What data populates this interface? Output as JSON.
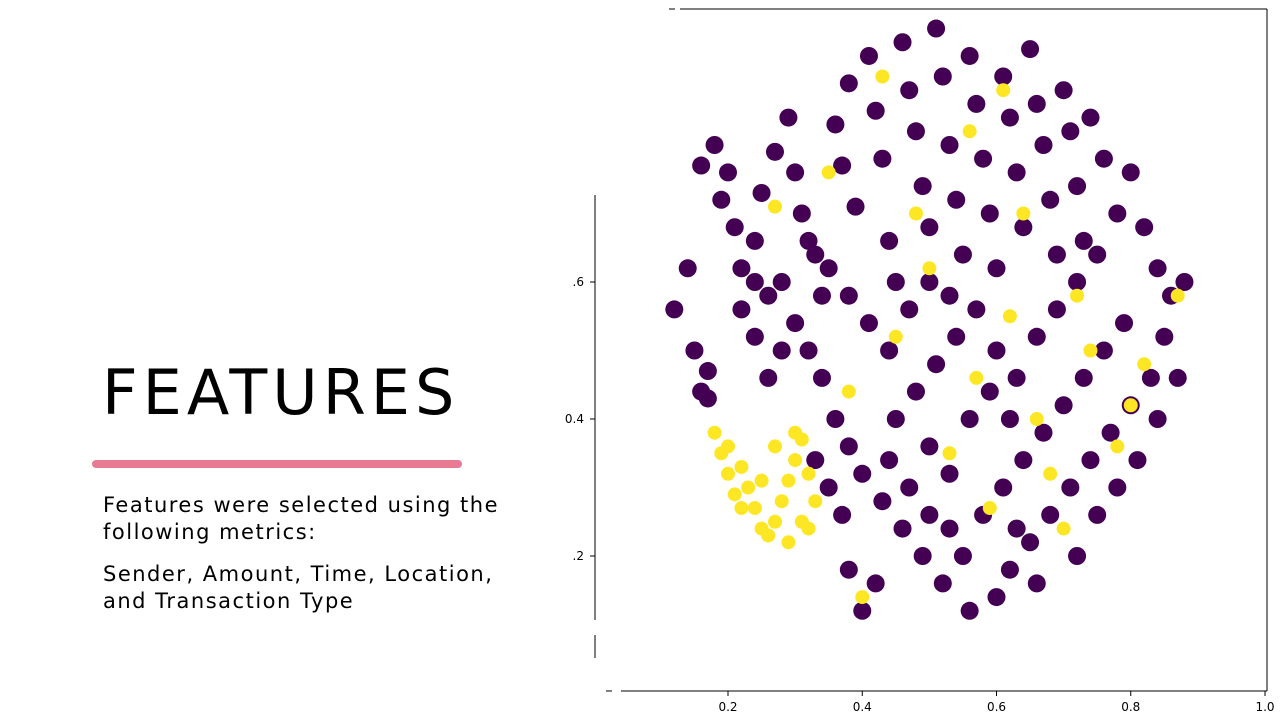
{
  "slide": {
    "title": "FEATURES",
    "paragraphs": [
      "Features were selected using the following metrics:",
      "Sender, Amount, Time, Location, and Transaction Type"
    ],
    "underline_color": "#e87a93"
  },
  "chart_data": {
    "type": "scatter",
    "title": "",
    "xlabel": "",
    "ylabel": "",
    "xlim": [
      0.05,
      1.0
    ],
    "ylim": [
      0.05,
      1.05
    ],
    "x_ticks": [
      "0.2",
      "0.4",
      "0.6",
      "0.8",
      "1.0"
    ],
    "y_ticks": [
      ".6",
      "0.4",
      ".2"
    ],
    "grid": false,
    "legend": "none",
    "series": [
      {
        "color": "#440154",
        "points": [
          [
            0.14,
            0.62
          ],
          [
            0.12,
            0.56
          ],
          [
            0.17,
            0.47
          ],
          [
            0.19,
            0.72
          ],
          [
            0.21,
            0.68
          ],
          [
            0.22,
            0.62
          ],
          [
            0.24,
            0.66
          ],
          [
            0.25,
            0.73
          ],
          [
            0.27,
            0.79
          ],
          [
            0.29,
            0.84
          ],
          [
            0.3,
            0.76
          ],
          [
            0.31,
            0.7
          ],
          [
            0.33,
            0.64
          ],
          [
            0.34,
            0.58
          ],
          [
            0.36,
            0.83
          ],
          [
            0.37,
            0.77
          ],
          [
            0.38,
            0.89
          ],
          [
            0.39,
            0.71
          ],
          [
            0.41,
            0.93
          ],
          [
            0.42,
            0.85
          ],
          [
            0.43,
            0.78
          ],
          [
            0.44,
            0.66
          ],
          [
            0.45,
            0.6
          ],
          [
            0.46,
            0.95
          ],
          [
            0.47,
            0.88
          ],
          [
            0.48,
            0.82
          ],
          [
            0.49,
            0.74
          ],
          [
            0.5,
            0.68
          ],
          [
            0.51,
            0.97
          ],
          [
            0.52,
            0.9
          ],
          [
            0.53,
            0.8
          ],
          [
            0.54,
            0.72
          ],
          [
            0.55,
            0.64
          ],
          [
            0.56,
            0.93
          ],
          [
            0.57,
            0.86
          ],
          [
            0.58,
            0.78
          ],
          [
            0.59,
            0.7
          ],
          [
            0.6,
            0.62
          ],
          [
            0.61,
            0.9
          ],
          [
            0.62,
            0.84
          ],
          [
            0.63,
            0.76
          ],
          [
            0.64,
            0.68
          ],
          [
            0.65,
            0.94
          ],
          [
            0.66,
            0.86
          ],
          [
            0.67,
            0.8
          ],
          [
            0.68,
            0.72
          ],
          [
            0.69,
            0.64
          ],
          [
            0.7,
            0.88
          ],
          [
            0.71,
            0.82
          ],
          [
            0.72,
            0.74
          ],
          [
            0.73,
            0.66
          ],
          [
            0.74,
            0.84
          ],
          [
            0.76,
            0.78
          ],
          [
            0.78,
            0.7
          ],
          [
            0.8,
            0.76
          ],
          [
            0.82,
            0.68
          ],
          [
            0.84,
            0.62
          ],
          [
            0.86,
            0.58
          ],
          [
            0.88,
            0.6
          ],
          [
            0.85,
            0.52
          ],
          [
            0.83,
            0.46
          ],
          [
            0.8,
            0.42
          ],
          [
            0.77,
            0.38
          ],
          [
            0.74,
            0.34
          ],
          [
            0.71,
            0.3
          ],
          [
            0.68,
            0.26
          ],
          [
            0.65,
            0.22
          ],
          [
            0.62,
            0.18
          ],
          [
            0.6,
            0.14
          ],
          [
            0.56,
            0.12
          ],
          [
            0.52,
            0.16
          ],
          [
            0.49,
            0.2
          ],
          [
            0.46,
            0.24
          ],
          [
            0.43,
            0.28
          ],
          [
            0.4,
            0.32
          ],
          [
            0.38,
            0.36
          ],
          [
            0.36,
            0.4
          ],
          [
            0.34,
            0.46
          ],
          [
            0.32,
            0.5
          ],
          [
            0.3,
            0.54
          ],
          [
            0.28,
            0.5
          ],
          [
            0.26,
            0.46
          ],
          [
            0.24,
            0.52
          ],
          [
            0.22,
            0.56
          ],
          [
            0.42,
            0.16
          ],
          [
            0.38,
            0.18
          ],
          [
            0.4,
            0.12
          ],
          [
            0.55,
            0.2
          ],
          [
            0.58,
            0.26
          ],
          [
            0.61,
            0.3
          ],
          [
            0.64,
            0.34
          ],
          [
            0.67,
            0.38
          ],
          [
            0.7,
            0.42
          ],
          [
            0.73,
            0.46
          ],
          [
            0.76,
            0.5
          ],
          [
            0.79,
            0.54
          ],
          [
            0.45,
            0.4
          ],
          [
            0.48,
            0.44
          ],
          [
            0.51,
            0.48
          ],
          [
            0.54,
            0.52
          ],
          [
            0.57,
            0.56
          ],
          [
            0.6,
            0.5
          ],
          [
            0.63,
            0.46
          ],
          [
            0.66,
            0.52
          ],
          [
            0.69,
            0.56
          ],
          [
            0.72,
            0.6
          ],
          [
            0.75,
            0.64
          ],
          [
            0.5,
            0.36
          ],
          [
            0.53,
            0.32
          ],
          [
            0.56,
            0.4
          ],
          [
            0.59,
            0.44
          ],
          [
            0.62,
            0.4
          ],
          [
            0.44,
            0.5
          ],
          [
            0.41,
            0.54
          ],
          [
            0.38,
            0.58
          ],
          [
            0.35,
            0.62
          ],
          [
            0.32,
            0.66
          ],
          [
            0.47,
            0.56
          ],
          [
            0.5,
            0.6
          ],
          [
            0.53,
            0.58
          ],
          [
            0.78,
            0.3
          ],
          [
            0.81,
            0.34
          ],
          [
            0.84,
            0.4
          ],
          [
            0.87,
            0.46
          ],
          [
            0.75,
            0.26
          ],
          [
            0.72,
            0.2
          ],
          [
            0.66,
            0.16
          ],
          [
            0.63,
            0.24
          ],
          [
            0.47,
            0.3
          ],
          [
            0.44,
            0.34
          ],
          [
            0.5,
            0.26
          ],
          [
            0.53,
            0.24
          ],
          [
            0.35,
            0.3
          ],
          [
            0.37,
            0.26
          ],
          [
            0.33,
            0.34
          ],
          [
            0.2,
            0.76
          ],
          [
            0.18,
            0.8
          ],
          [
            0.16,
            0.77
          ],
          [
            0.15,
            0.5
          ],
          [
            0.16,
            0.44
          ],
          [
            0.17,
            0.43
          ],
          [
            0.28,
            0.6
          ],
          [
            0.26,
            0.58
          ],
          [
            0.24,
            0.6
          ]
        ]
      },
      {
        "color": "#fde725",
        "points": [
          [
            0.18,
            0.38
          ],
          [
            0.19,
            0.35
          ],
          [
            0.2,
            0.32
          ],
          [
            0.21,
            0.29
          ],
          [
            0.22,
            0.27
          ],
          [
            0.23,
            0.3
          ],
          [
            0.24,
            0.27
          ],
          [
            0.25,
            0.24
          ],
          [
            0.26,
            0.23
          ],
          [
            0.27,
            0.25
          ],
          [
            0.28,
            0.28
          ],
          [
            0.29,
            0.31
          ],
          [
            0.3,
            0.34
          ],
          [
            0.31,
            0.37
          ],
          [
            0.32,
            0.32
          ],
          [
            0.33,
            0.28
          ],
          [
            0.31,
            0.25
          ],
          [
            0.29,
            0.22
          ],
          [
            0.27,
            0.36
          ],
          [
            0.3,
            0.38
          ],
          [
            0.2,
            0.36
          ],
          [
            0.22,
            0.33
          ],
          [
            0.25,
            0.31
          ],
          [
            0.32,
            0.24
          ],
          [
            0.62,
            0.55
          ],
          [
            0.72,
            0.58
          ],
          [
            0.8,
            0.42
          ],
          [
            0.66,
            0.4
          ],
          [
            0.57,
            0.46
          ],
          [
            0.48,
            0.7
          ],
          [
            0.43,
            0.9
          ],
          [
            0.61,
            0.88
          ],
          [
            0.53,
            0.35
          ],
          [
            0.35,
            0.76
          ],
          [
            0.27,
            0.71
          ],
          [
            0.87,
            0.58
          ],
          [
            0.78,
            0.36
          ],
          [
            0.59,
            0.27
          ],
          [
            0.4,
            0.14
          ],
          [
            0.45,
            0.52
          ],
          [
            0.5,
            0.62
          ],
          [
            0.68,
            0.32
          ],
          [
            0.74,
            0.5
          ],
          [
            0.82,
            0.48
          ],
          [
            0.38,
            0.44
          ],
          [
            0.56,
            0.82
          ],
          [
            0.64,
            0.7
          ],
          [
            0.7,
            0.24
          ]
        ]
      }
    ]
  }
}
